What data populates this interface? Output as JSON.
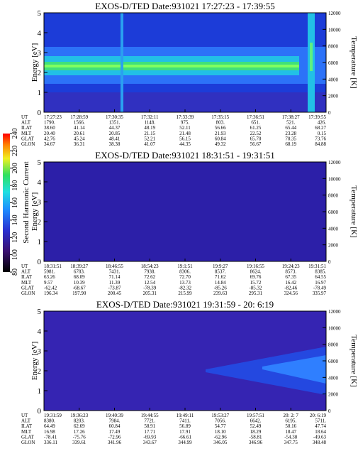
{
  "chart_data": {
    "type": "spectrogram",
    "colorbar": {
      "label": "Second Harmonic Current",
      "lim": [
        80,
        240
      ],
      "ticks": [
        80,
        100,
        120,
        140,
        160,
        180,
        200,
        220,
        240
      ]
    },
    "panels": [
      {
        "title": "EXOS-D/TED   Date:931021  17:27:23 - 17:39:55",
        "ylabel": "Energy [eV]",
        "y2label": "Temperature [K]",
        "ylim": [
          0,
          5
        ],
        "yticks": [
          0,
          1,
          2,
          3,
          4,
          5
        ],
        "y2lim": [
          0,
          12000
        ],
        "y2ticks": [
          0,
          2000,
          4000,
          6000,
          8000,
          10000,
          12000
        ],
        "rows": [
          {
            "label": "UT",
            "values": [
              "17:27:23",
              "17:28:59",
              "17:30:35",
              "17:32:11",
              "17:33:39",
              "17:35:15",
              "17:36:51",
              "17:38:27",
              "17:39:55"
            ]
          },
          {
            "label": "ALT",
            "values": [
              "1790.",
              "1566.",
              "1351.",
              "1148.",
              "975.",
              "803.",
              "651.",
              "521.",
              "426."
            ]
          },
          {
            "label": "ILAT",
            "values": [
              "38.60",
              "41.14",
              "44.37",
              "48.19",
              "52.11",
              "56.66",
              "61.25",
              "65.44",
              "68.27"
            ]
          },
          {
            "label": "MLT",
            "values": [
              "20.40",
              "20.61",
              "20.85",
              "21.15",
              "21.48",
              "21.93",
              "22.52",
              "23.28",
              "0.15"
            ]
          },
          {
            "label": "GLAT",
            "values": [
              "42.76",
              "45.24",
              "48.41",
              "52.21",
              "56.15",
              "60.84",
              "65.70",
              "70.35",
              "73.76"
            ]
          },
          {
            "label": "GLON",
            "values": [
              "34.67",
              "36.31",
              "38.38",
              "41.07",
              "44.35",
              "49.32",
              "56.67",
              "68.19",
              "84.88"
            ]
          }
        ]
      },
      {
        "title": "EXOS-D/TED   Date:931021  18:31:51 - 19:31:51",
        "ylabel": "Energy [eV]",
        "y2label": "Temperature [K]",
        "ylim": [
          0,
          5
        ],
        "yticks": [
          0,
          1,
          2,
          3,
          4,
          5
        ],
        "y2lim": [
          0,
          12000
        ],
        "y2ticks": [
          0,
          2000,
          4000,
          6000,
          8000,
          10000,
          12000
        ],
        "rows": [
          {
            "label": "UT",
            "values": [
              "18:31:51",
              "18:39:27",
              "18:46:55",
              "18:54:23",
              "19:1:51",
              "19:9:27",
              "19:16:55",
              "19:24:23",
              "19:31:51"
            ]
          },
          {
            "label": "ALT",
            "values": [
              "5981.",
              "6783.",
              "7431.",
              "7938.",
              "8306.",
              "8537.",
              "8624.",
              "8573.",
              "8385."
            ]
          },
          {
            "label": "ILAT",
            "values": [
              "63.26",
              "68.09",
              "71.14",
              "72.62",
              "72.70",
              "71.62",
              "69.76",
              "67.35",
              "64.55"
            ]
          },
          {
            "label": "MLT",
            "values": [
              "9.57",
              "10.39",
              "11.39",
              "12.54",
              "13.73",
              "14.84",
              "15.72",
              "16.42",
              "16.97"
            ]
          },
          {
            "label": "GLAT",
            "values": [
              "-62.42",
              "-68.67",
              "-73.87",
              "-78.39",
              "-82.32",
              "-85.26",
              "-85.32",
              "-82.46",
              "-78.49"
            ]
          },
          {
            "label": "GLON",
            "values": [
              "196.34",
              "197.90",
              "200.45",
              "205.31",
              "215.99",
              "239.63",
              "295.31",
              "324.56",
              "335.97"
            ]
          }
        ]
      },
      {
        "title": "EXOS-D/TED   Date:931021  19:31:59 - 20: 6:19",
        "ylabel": "Energy [eV]",
        "y2label": "Temperature [K]",
        "ylim": [
          0,
          5
        ],
        "yticks": [
          0,
          1,
          2,
          3,
          4,
          5
        ],
        "y2lim": [
          0,
          12000
        ],
        "y2ticks": [
          0,
          2000,
          4000,
          6000,
          8000,
          10000,
          12000
        ],
        "rows": [
          {
            "label": "UT",
            "values": [
              "19:31:59",
              "19:36:23",
              "19:40:39",
              "19:44:55",
              "19:49:11",
              "19:53:27",
              "19:57:51",
              "20: 2: 7",
              "20: 6:19"
            ]
          },
          {
            "label": "ALT",
            "values": [
              "8380.",
              "8203.",
              "7984.",
              "7721.",
              "7411.",
              "7056.",
              "6642.",
              "6195.",
              "5711."
            ]
          },
          {
            "label": "ILAT",
            "values": [
              "64.49",
              "62.69",
              "60.84",
              "58.91",
              "56.89",
              "54.77",
              "52.49",
              "50.16",
              "47.74"
            ]
          },
          {
            "label": "MLT",
            "values": [
              "16.98",
              "17.26",
              "17.49",
              "17.71",
              "17.91",
              "18.10",
              "18.29",
              "18.47",
              "18.64"
            ]
          },
          {
            "label": "GLAT",
            "values": [
              "-78.41",
              "-75.76",
              "-72.96",
              "-69.93",
              "-66.61",
              "-62.96",
              "-58.81",
              "-54.38",
              "-49.63"
            ]
          },
          {
            "label": "GLON",
            "values": [
              "336.11",
              "339.61",
              "341.96",
              "343.67",
              "344.99",
              "346.05",
              "346.96",
              "347.75",
              "348.48"
            ]
          }
        ]
      }
    ]
  }
}
